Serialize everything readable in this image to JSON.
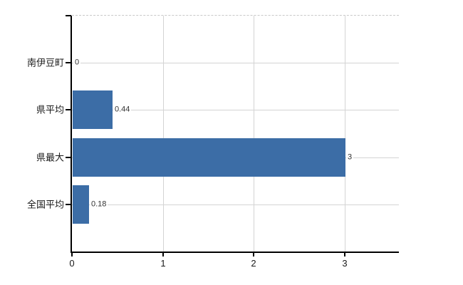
{
  "chart_data": {
    "type": "bar",
    "orientation": "horizontal",
    "title": "",
    "xlabel": "",
    "ylabel": "",
    "categories": [
      "南伊豆町",
      "県平均",
      "県最大",
      "全国平均"
    ],
    "values": [
      0,
      0.44,
      3,
      0.18
    ],
    "value_labels": [
      "0",
      "0.44",
      "3",
      "0.18"
    ],
    "x_ticks": [
      0,
      1,
      2,
      3
    ],
    "x_tick_labels": [
      "0",
      "1",
      "2",
      "3"
    ],
    "xlim": [
      0,
      3.6
    ],
    "grid": true,
    "legend": false,
    "colors": {
      "bar": "#3c6da6",
      "gridline": "#d4d4d4",
      "top_border": "#c9c9c9",
      "axis": "#000000",
      "value_label": "#333333",
      "tick_label": "#1a1a1a",
      "background": "#ffffff"
    }
  }
}
